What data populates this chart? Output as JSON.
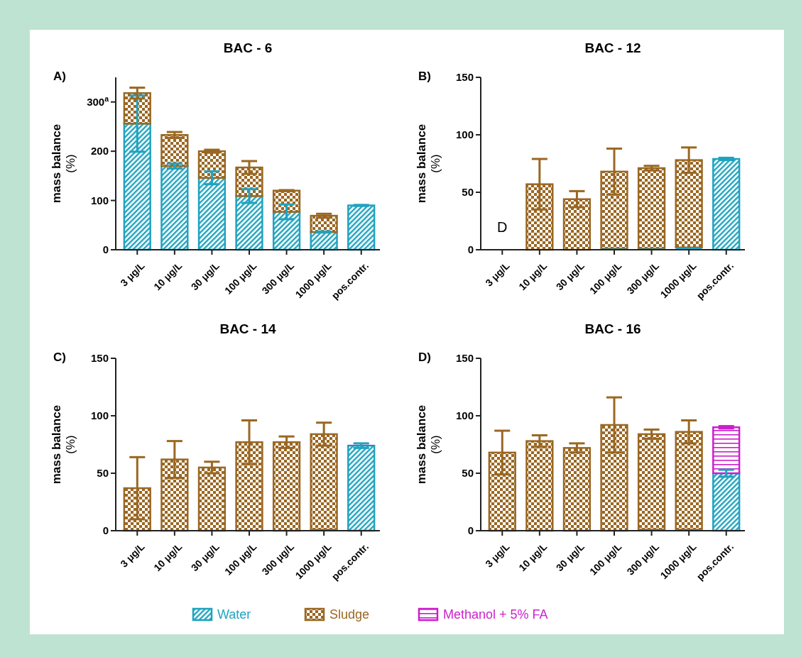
{
  "chart_data": [
    {
      "type": "bar",
      "title": "BAC - 6",
      "ylabel": "mass balance\n(%)",
      "stacked": true,
      "categories": [
        "3 μg/L",
        "10 μg/L",
        "30 μg/L",
        "100 μg/L",
        "300 μg/L",
        "1000 μg/L",
        "pos.contr."
      ],
      "ylim": [
        0,
        350
      ],
      "yticks": [
        0,
        100,
        200,
        {
          "value": 300,
          "label": "300$^{a}$"
        }
      ],
      "annotations": [
        "A)"
      ],
      "series": [
        {
          "color": "#1fa3bf",
          "values": [
            256,
            170,
            146,
            109,
            77,
            36,
            90
          ],
          "errors": [
            57,
            5,
            13,
            14,
            15,
            1,
            1
          ]
        },
        {
          "color": "#9a6722",
          "values": [
            62,
            63,
            54,
            58,
            43,
            33,
            null
          ],
          "errors": [
            11,
            6,
            3,
            13,
            1,
            4,
            null
          ]
        }
      ]
    },
    {
      "type": "bar",
      "title": "BAC - 12",
      "ylabel": "mass balance\n(%)",
      "stacked": true,
      "categories": [
        "3 μg/L",
        "10 μg/L",
        "30 μg/L",
        "100 μg/L",
        "300 μg/L",
        "1000 μg/L",
        "pos.contr."
      ],
      "ylim": [
        0,
        150
      ],
      "yticks": [
        0,
        50,
        100,
        150
      ],
      "annotations": [
        "B)",
        "D"
      ],
      "series": [
        {
          "color": "#1fa3bf",
          "values": [
            null,
            null,
            null,
            1,
            1,
            2,
            79
          ],
          "errors": [
            null,
            null,
            null,
            null,
            null,
            null,
            1
          ]
        },
        {
          "color": "#9a6722",
          "values": [
            null,
            57,
            44,
            67,
            70,
            76,
            null
          ],
          "errors": [
            null,
            22,
            7,
            20,
            2,
            11,
            null
          ]
        }
      ]
    },
    {
      "type": "bar",
      "title": "BAC - 14",
      "ylabel": "mass balance\n(%)",
      "stacked": true,
      "categories": [
        "3 μg/L",
        "10 μg/L",
        "30 μg/L",
        "100 μg/L",
        "300 μg/L",
        "1000 μg/L",
        "pos.contr."
      ],
      "ylim": [
        0,
        150
      ],
      "yticks": [
        0,
        50,
        100,
        150
      ],
      "annotations": [
        "C)"
      ],
      "series": [
        {
          "color": "#1fa3bf",
          "values": [
            null,
            null,
            null,
            null,
            null,
            1,
            74
          ],
          "errors": [
            null,
            null,
            null,
            null,
            null,
            null,
            2
          ]
        },
        {
          "color": "#9a6722",
          "values": [
            37,
            62,
            55,
            77,
            77,
            83,
            null
          ],
          "errors": [
            27,
            16,
            5,
            19,
            5,
            10,
            null
          ]
        },
        {
          "color": "#cc1fcc",
          "values": [
            null,
            null,
            null,
            null,
            null,
            null,
            0.5
          ]
        }
      ]
    },
    {
      "type": "bar",
      "title": "BAC - 16",
      "ylabel": "mass balance\n(%)",
      "stacked": true,
      "legend": "bottom",
      "categories": [
        "3 μg/L",
        "10 μg/L",
        "30 μg/L",
        "100 μg/L",
        "300 μg/L",
        "1000 μg/L",
        "pos.contr."
      ],
      "ylim": [
        0,
        150
      ],
      "yticks": [
        0,
        50,
        100,
        150
      ],
      "annotations": [
        "D)"
      ],
      "series": [
        {
          "name": "Water",
          "color": "#1fa3bf",
          "values": [
            null,
            null,
            null,
            null,
            1,
            1,
            50
          ],
          "errors": [
            null,
            null,
            null,
            null,
            null,
            null,
            3
          ]
        },
        {
          "name": "Sludge",
          "color": "#9a6722",
          "values": [
            68,
            78,
            72,
            92,
            83,
            85,
            null
          ],
          "errors": [
            19,
            5,
            4,
            24,
            4,
            10,
            null
          ]
        },
        {
          "name": "Methanol + 5% FA",
          "color": "#cc1fcc",
          "values": [
            null,
            null,
            null,
            null,
            null,
            null,
            40
          ],
          "errors": [
            null,
            null,
            null,
            null,
            null,
            null,
            1
          ]
        }
      ]
    }
  ]
}
